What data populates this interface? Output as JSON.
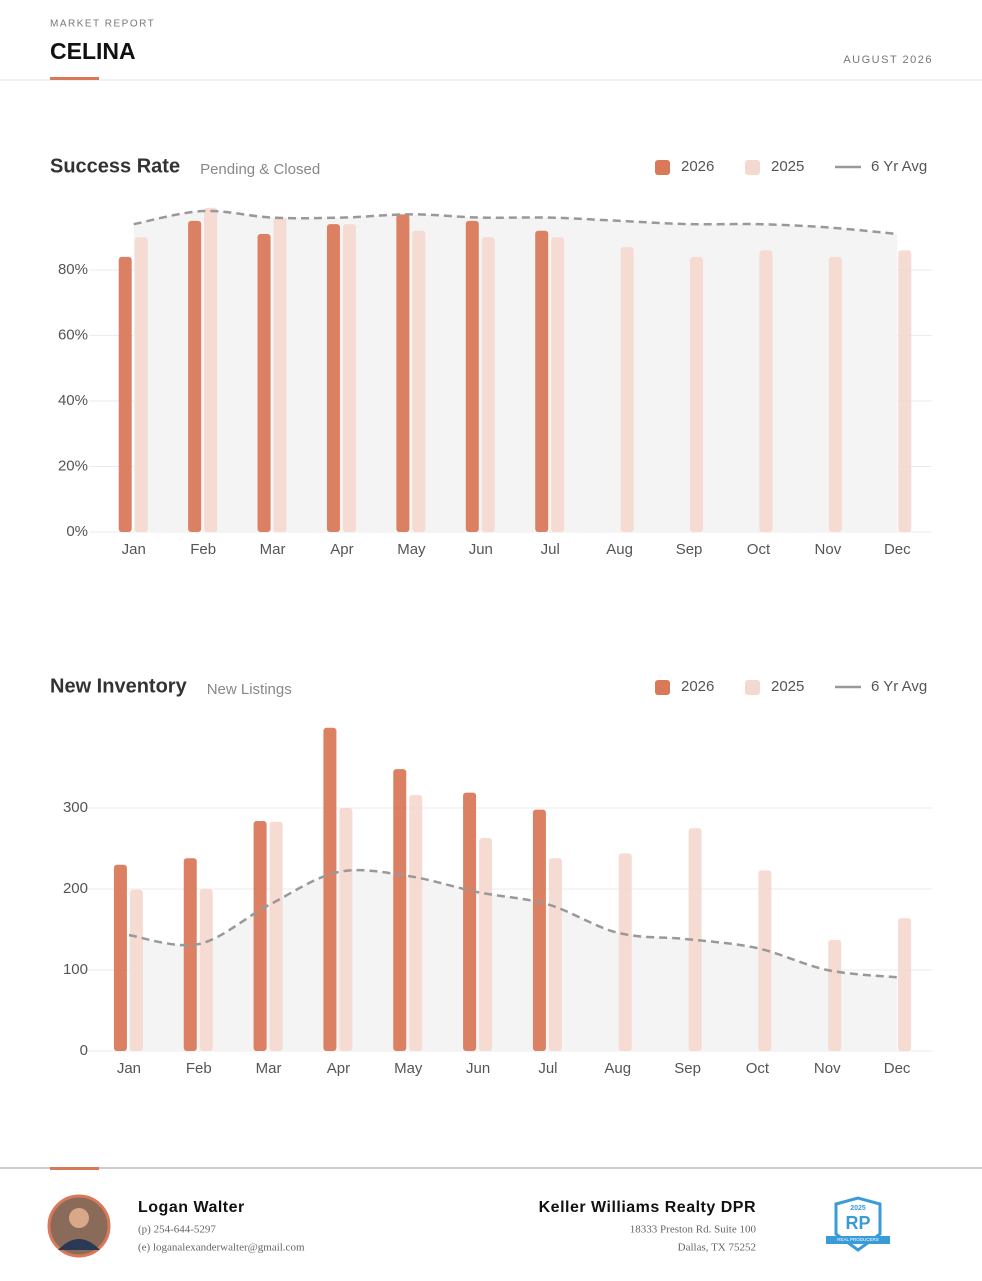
{
  "header": {
    "label": "MARKET REPORT",
    "title": "CELINA",
    "date": "AUGUST 2026"
  },
  "chart_data": [
    {
      "type": "bar",
      "title": "Success Rate",
      "subtitle": "Pending & Closed",
      "categories": [
        "Jan",
        "Feb",
        "Mar",
        "Apr",
        "May",
        "Jun",
        "Jul",
        "Aug",
        "Sep",
        "Oct",
        "Nov",
        "Dec"
      ],
      "series": [
        {
          "name": "2026",
          "color": "#d9795a",
          "values": [
            84,
            95,
            91,
            94,
            97,
            95,
            92,
            null,
            null,
            null,
            null,
            null
          ]
        },
        {
          "name": "2025",
          "color": "#f4d9d0",
          "values": [
            90,
            99,
            96,
            94,
            92,
            90,
            90,
            87,
            84,
            86,
            84,
            86
          ]
        },
        {
          "name": "6 Yr Avg",
          "type": "line",
          "color": "#999999",
          "values": [
            94,
            98,
            96,
            96,
            97,
            96,
            96,
            95,
            94,
            94,
            93,
            91
          ]
        }
      ],
      "ylim": [
        0,
        100
      ],
      "yticks": [
        {
          "value": 0,
          "label": "0%"
        },
        {
          "value": 20,
          "label": "20%"
        },
        {
          "value": 40,
          "label": "40%"
        },
        {
          "value": 60,
          "label": "60%"
        },
        {
          "value": 80,
          "label": "80%"
        }
      ],
      "grid": true
    },
    {
      "type": "bar",
      "title": "New Inventory",
      "subtitle": "New Listings",
      "categories": [
        "Jan",
        "Feb",
        "Mar",
        "Apr",
        "May",
        "Jun",
        "Jul",
        "Aug",
        "Sep",
        "Oct",
        "Nov",
        "Dec"
      ],
      "series": [
        {
          "name": "2026",
          "color": "#d9795a",
          "values": [
            230,
            238,
            284,
            399,
            348,
            319,
            298,
            null,
            null,
            null,
            null,
            null
          ]
        },
        {
          "name": "2025",
          "color": "#f4d9d0",
          "values": [
            199,
            200,
            283,
            300,
            316,
            263,
            238,
            244,
            275,
            223,
            137,
            164
          ]
        },
        {
          "name": "6 Yr Avg",
          "type": "line",
          "color": "#999999",
          "values": [
            143,
            132,
            180,
            221,
            216,
            196,
            181,
            146,
            138,
            127,
            100,
            91
          ]
        }
      ],
      "ylim": [
        0,
        400
      ],
      "yticks": [
        0,
        100,
        200,
        300
      ],
      "grid": true
    }
  ],
  "footer": {
    "agent": {
      "name": "Logan Walter",
      "phone": "(p) 254-644-5297",
      "email": "(e) loganalexanderwalter@gmail.com"
    },
    "company": {
      "name": "Keller Williams Realty DPR",
      "address": [
        "18333 Preston Rd. Suite 100",
        "Dallas, TX 75252"
      ]
    },
    "badge": {
      "year": "2025",
      "logo": "RP",
      "text": "REAL PRODUCERS"
    }
  }
}
